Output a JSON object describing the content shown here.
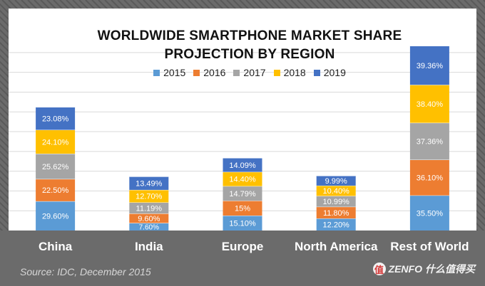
{
  "chart_data": {
    "type": "bar",
    "stacked": true,
    "title_lines": [
      "WORLDWIDE SMARTPHONE MARKET SHARE",
      "PROJECTION BY REGION"
    ],
    "categories": [
      "China",
      "India",
      "Europe",
      "North America",
      "Rest of World"
    ],
    "series": [
      {
        "name": "2015",
        "color": "#5b9bd5",
        "values": [
          29.6,
          7.6,
          15.1,
          12.2,
          35.5
        ],
        "labels": [
          "29.60%",
          "7.60%",
          "15.10%",
          "12.20%",
          "35.50%"
        ]
      },
      {
        "name": "2016",
        "color": "#ed7d31",
        "values": [
          22.5,
          9.6,
          15.0,
          11.8,
          36.1
        ],
        "labels": [
          "22.50%",
          "9.60%",
          "15%",
          "11.80%",
          "36.10%"
        ]
      },
      {
        "name": "2017",
        "color": "#a5a5a5",
        "values": [
          25.62,
          11.19,
          14.79,
          10.99,
          37.36
        ],
        "labels": [
          "25.62%",
          "11.19%",
          "14.79%",
          "10.99%",
          "37.36%"
        ]
      },
      {
        "name": "2018",
        "color": "#ffc000",
        "values": [
          24.1,
          12.7,
          14.4,
          10.4,
          38.4
        ],
        "labels": [
          "24.10%",
          "12.70%",
          "14.40%",
          "10.40%",
          "38.40%"
        ]
      },
      {
        "name": "2019",
        "color": "#4472c4",
        "values": [
          23.08,
          13.49,
          14.09,
          9.99,
          39.36
        ],
        "labels": [
          "23.08%",
          "13.49%",
          "14.09%",
          "9.99%",
          "39.36%"
        ]
      }
    ],
    "ylim": [
      0,
      190
    ],
    "grid": true,
    "legend": "top-center"
  },
  "source": "Source: IDC, December 2015",
  "watermark": {
    "brand": "ZENFO",
    "site": "什么值得买",
    "badge": "值"
  },
  "colors": {
    "background": "#6b6b6b",
    "plot_background": "#ffffff",
    "footer_band": "#6b6b6b"
  }
}
